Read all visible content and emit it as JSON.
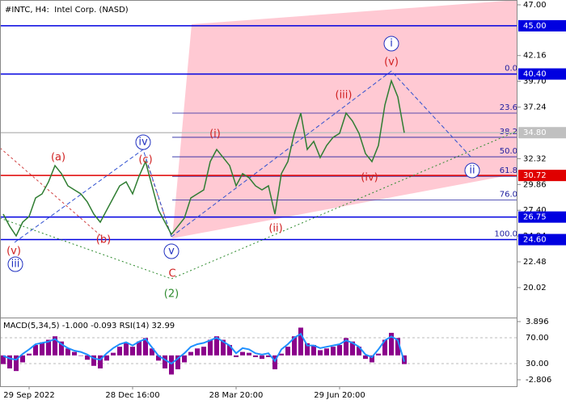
{
  "chart_data": [
    {
      "type": "line",
      "title": "#INTC, H4:  Intel Corp. (NASD)",
      "categories": [
        null,
        null,
        null,
        null,
        "29 Sep 2022",
        null,
        null,
        null,
        null,
        null,
        null,
        null,
        null,
        null,
        null,
        null,
        null,
        null,
        null,
        null,
        "28 Dec 16:00",
        null,
        null,
        null,
        null,
        null,
        null,
        null,
        null,
        null,
        null,
        null,
        null,
        null,
        null,
        null,
        "28 Mar 20:00",
        null,
        null,
        null,
        null,
        null,
        null,
        null,
        null,
        null,
        null,
        null,
        null,
        null,
        null,
        null,
        "29 Jun 20:00",
        null,
        null,
        null,
        null,
        null,
        null,
        null,
        null,
        null,
        null
      ],
      "series": [
        {
          "color": "#2f7d32",
          "values": [
            27.03,
            25.87,
            24.95,
            26.26,
            26.8,
            28.57,
            28.96,
            30.11,
            31.66,
            30.89,
            29.73,
            29.34,
            28.96,
            28.19,
            27.03,
            26.26,
            27.42,
            28.57,
            29.73,
            30.11,
            28.96,
            30.65,
            32.04,
            29.73,
            27.42,
            26.26,
            25.1,
            25.87,
            26.65,
            28.57,
            28.96,
            29.34,
            32.04,
            33.2,
            32.43,
            31.66,
            29.73,
            30.89,
            30.5,
            29.73,
            29.34,
            29.73,
            27.03,
            30.89,
            32.04,
            34.74,
            36.67,
            33.2,
            33.97,
            32.43,
            33.58,
            34.36,
            34.74,
            36.67,
            35.9,
            34.74,
            32.81,
            32.04,
            33.58,
            37.44,
            39.75,
            38.21,
            34.8
          ]
        }
      ],
      "ylim": [
        17.24,
        47.46
      ],
      "yticks": [
        {
          "value": 47,
          "label": "47.00"
        },
        {
          "value": 42.16,
          "label": "42.16"
        },
        {
          "value": 39.7,
          "label": "39.70"
        },
        {
          "value": 37.24,
          "label": "37.24"
        },
        {
          "value": 32.32,
          "label": "32.32"
        },
        {
          "value": 29.86,
          "label": "29.86"
        },
        {
          "value": 27.4,
          "label": "27.40"
        },
        {
          "value": 24.94,
          "label": "24.94"
        },
        {
          "value": 22.48,
          "label": "22.48"
        },
        {
          "value": 20.02,
          "label": "20.02"
        }
      ],
      "levels": [
        {
          "value": 45,
          "label": "45.00",
          "color": "#0000e0"
        },
        {
          "value": 40.4,
          "label": "40.40",
          "color": "#0000e0"
        },
        {
          "value": 34.8,
          "label": "34.80",
          "color": "#c0c0c0"
        },
        {
          "value": 30.72,
          "label": "30.72",
          "color": "#e00000"
        },
        {
          "value": 26.75,
          "label": "26.75",
          "color": "#0000e0"
        },
        {
          "value": 24.6,
          "label": "24.60",
          "color": "#0000e0"
        }
      ],
      "fibonacci": [
        {
          "label": "0.0",
          "price": 40.4
        },
        {
          "label": "23.6",
          "price": 36.67
        },
        {
          "label": "38.2",
          "price": 34.36
        },
        {
          "label": "50.0",
          "price": 32.5
        },
        {
          "label": "61.8",
          "price": 30.64
        },
        {
          "label": "76.0",
          "price": 28.39
        },
        {
          "label": "100.0",
          "price": 24.6
        }
      ],
      "annotations": [
        "(a)",
        "(b)",
        "(c)",
        "iv",
        "(v)",
        "iii",
        "v",
        "C",
        "(2)",
        "(i)",
        "(ii)",
        "(iii)",
        "(iv)",
        "(v)",
        "i",
        "ii"
      ]
    },
    {
      "type": "bar",
      "title": "MACD(5,34,5) -1.000 -0.093 RSI(14) 32.99",
      "series": [
        {
          "color": "#8b008b",
          "values": [
            -1.0,
            -1.5,
            -1.8,
            -0.8,
            0.2,
            1.2,
            1.5,
            1.8,
            2.2,
            1.6,
            0.8,
            0.4,
            0.0,
            -0.5,
            -1.2,
            -1.5,
            -0.6,
            0.3,
            1.0,
            1.4,
            1.0,
            1.6,
            2.0,
            0.8,
            -0.6,
            -1.5,
            -2.2,
            -1.6,
            -0.8,
            0.4,
            0.8,
            1.0,
            1.8,
            2.2,
            1.8,
            1.2,
            -0.2,
            0.4,
            0.3,
            -0.2,
            -0.4,
            -0.2,
            -1.6,
            0.2,
            1.0,
            2.2,
            3.2,
            1.4,
            1.2,
            0.6,
            0.8,
            1.0,
            1.2,
            2.0,
            1.6,
            1.0,
            -0.4,
            -0.8,
            0.2,
            1.8,
            2.6,
            2.0,
            -1.0
          ]
        },
        {
          "color": "#1e90ff",
          "axis": "y2",
          "values": [
            42,
            38,
            36,
            45,
            52,
            60,
            62,
            64,
            68,
            60,
            54,
            50,
            48,
            44,
            38,
            36,
            46,
            54,
            60,
            63,
            58,
            64,
            68,
            55,
            42,
            36,
            30,
            38,
            46,
            56,
            60,
            62,
            66,
            70,
            64,
            58,
            46,
            54,
            52,
            46,
            44,
            46,
            34,
            52,
            60,
            70,
            76,
            58,
            58,
            54,
            56,
            58,
            60,
            66,
            62,
            56,
            44,
            40,
            52,
            66,
            72,
            66,
            32.99
          ]
        }
      ],
      "ylim": [
        -2.806,
        3.896
      ],
      "yticks": [
        3.896,
        -2.806
      ],
      "y2lim": [
        0,
        100
      ],
      "y2ticks": [
        {
          "value": 70,
          "label": "70.00"
        },
        {
          "value": 30,
          "label": "30.00"
        }
      ]
    }
  ]
}
